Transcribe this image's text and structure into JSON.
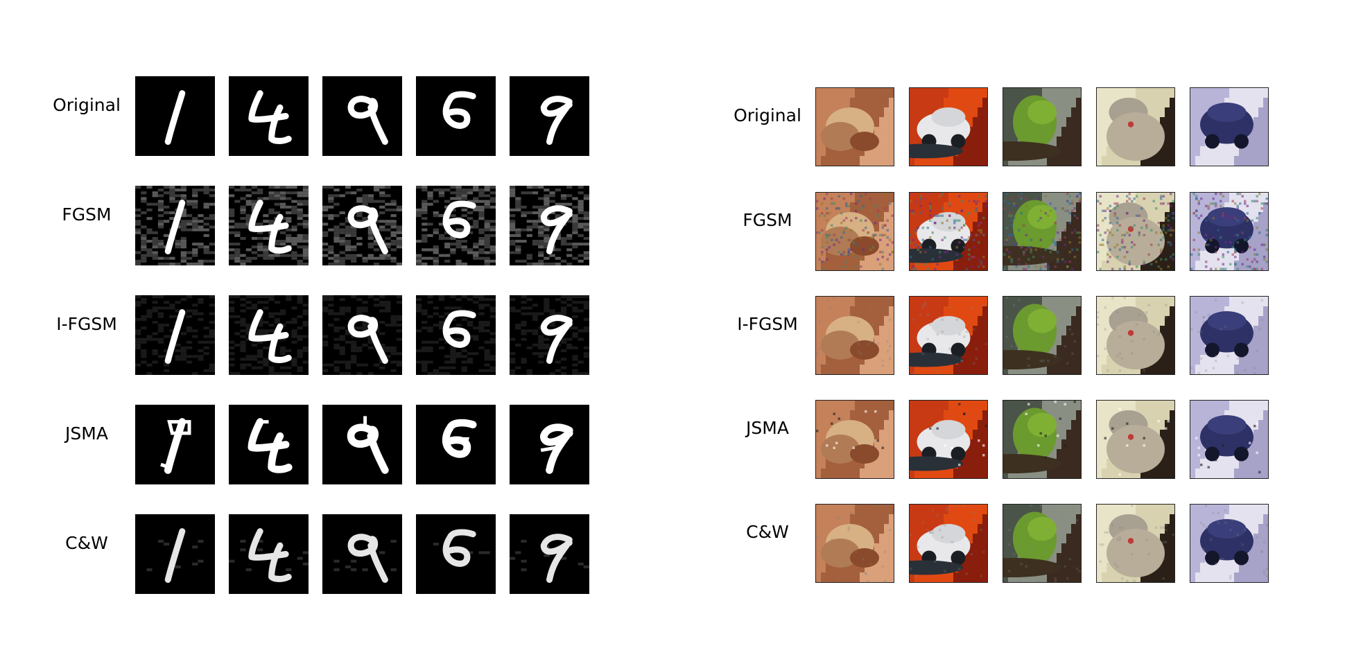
{
  "mnist_panel": {
    "row_labels": [
      "Original",
      "FGSM",
      "I-FGSM",
      "JSMA",
      "C&W"
    ],
    "digits": [
      "1",
      "4",
      "9",
      "6",
      "9"
    ]
  },
  "cifar_panel": {
    "row_labels": [
      "Original",
      "FGSM",
      "I-FGSM",
      "JSMA",
      "C&W"
    ],
    "subjects": [
      "frog",
      "car",
      "frog",
      "cat",
      "truck"
    ]
  }
}
